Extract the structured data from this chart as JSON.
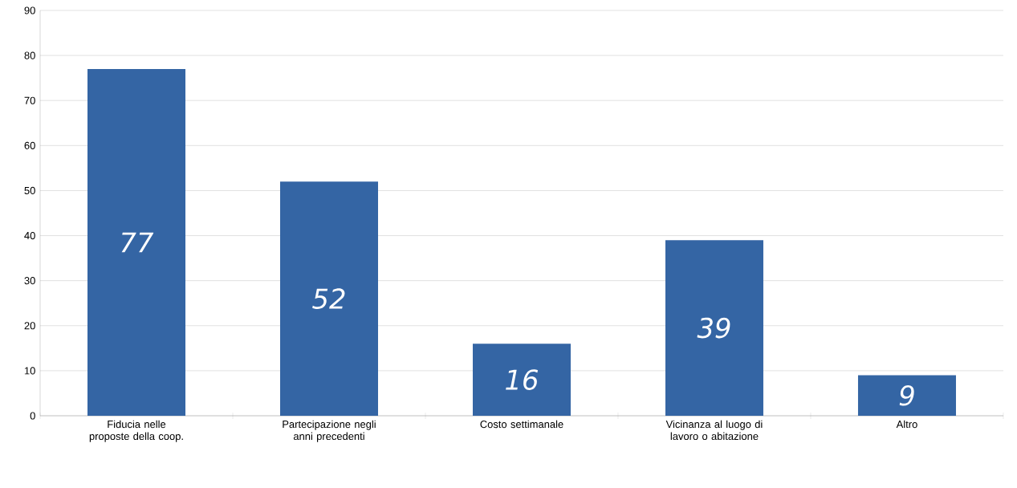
{
  "chart_data": {
    "type": "bar",
    "categories": [
      "Fiducia nelle proposte della coop.",
      "Partecipazione negli anni precedenti",
      "Costo settimanale",
      "Vicinanza al luogo di lavoro o abitazione",
      "Altro"
    ],
    "values": [
      77,
      52,
      16,
      39,
      9
    ],
    "color": "#3465a4",
    "ylim": [
      0,
      90
    ],
    "yticks": [
      0,
      10,
      20,
      30,
      40,
      50,
      60,
      70,
      80,
      90
    ],
    "grid": "y",
    "data_labels": true
  }
}
